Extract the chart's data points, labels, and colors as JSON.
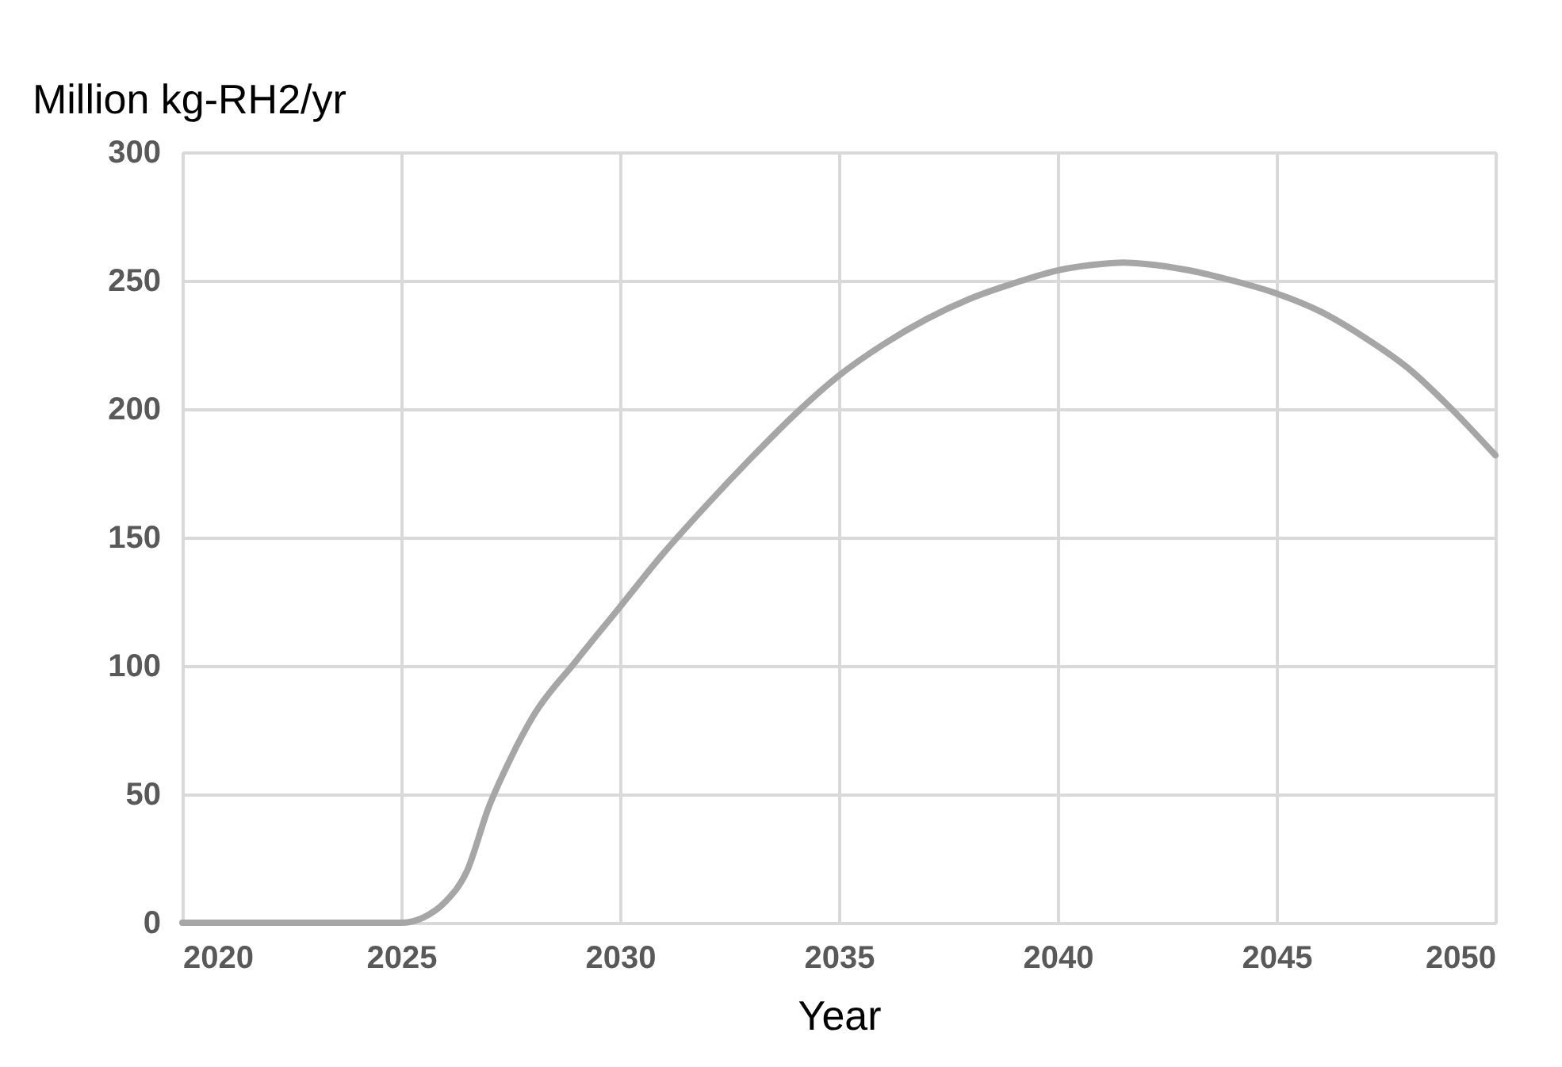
{
  "chart_data": {
    "type": "line",
    "ylabel": "Million kg-RH2/yr",
    "xlabel": "Year",
    "x": [
      2020,
      2021,
      2022,
      2023,
      2024,
      2025,
      2025.5,
      2026,
      2026.5,
      2027,
      2027.5,
      2028,
      2029,
      2030,
      2031,
      2032,
      2033,
      2034,
      2035,
      2036,
      2037,
      2038,
      2039,
      2040,
      2041,
      2041.5,
      2042,
      2043,
      2044,
      2045,
      2046,
      2047,
      2048,
      2049,
      2050
    ],
    "series": [
      {
        "color": "#a6a6a6",
        "values": [
          0,
          0,
          0,
          0,
          0,
          0,
          2,
          8,
          20,
          45,
          64,
          80,
          102,
          123,
          144,
          163,
          181,
          198,
          213,
          225,
          235,
          243,
          249,
          254,
          256.5,
          257,
          256.5,
          254,
          250,
          245,
          238,
          228,
          216,
          200,
          182
        ]
      }
    ],
    "xlim": [
      2020,
      2050
    ],
    "xticks": [
      2020,
      2025,
      2030,
      2035,
      2040,
      2045,
      2050
    ],
    "ylim": [
      0,
      300
    ],
    "yticks": [
      0,
      50,
      100,
      150,
      200,
      250,
      300
    ],
    "grid": true,
    "marker": "none",
    "line_style": "solid"
  }
}
